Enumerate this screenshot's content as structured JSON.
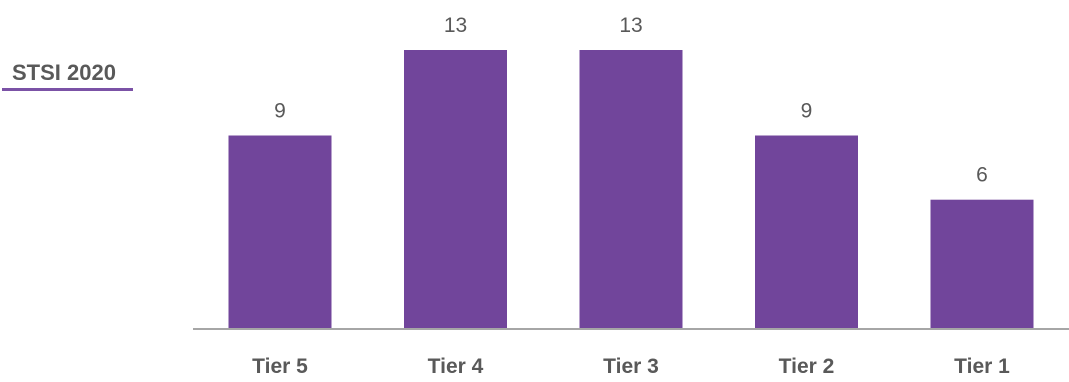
{
  "colors": {
    "bar": "#71459B",
    "baseline": "#A6A6A6",
    "label": "#595959",
    "title_underline": "#7B52A6"
  },
  "chart_data": {
    "type": "bar",
    "title": "STSI 2020",
    "xlabel": "",
    "ylabel": "",
    "categories": [
      "Tier 5",
      "Tier 4",
      "Tier 3",
      "Tier 2",
      "Tier 1"
    ],
    "values": [
      9,
      13,
      13,
      9,
      6
    ],
    "data_labels": [
      "9",
      "13",
      "13",
      "9",
      "6"
    ],
    "ylim": [
      0,
      13
    ],
    "grid": false,
    "legend": "none"
  }
}
